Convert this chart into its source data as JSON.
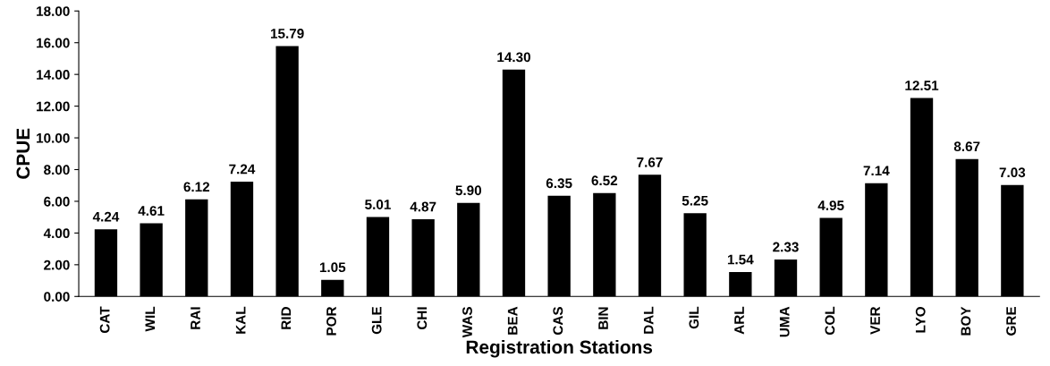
{
  "chart_data": {
    "type": "bar",
    "xlabel": "Registration Stations",
    "ylabel": "CPUE",
    "categories": [
      "CAT",
      "WIL",
      "RAI",
      "KAL",
      "RID",
      "POR",
      "GLE",
      "CHI",
      "WAS",
      "BEA",
      "CAS",
      "BIN",
      "DAL",
      "GIL",
      "ARL",
      "UMA",
      "COL",
      "VER",
      "LYO",
      "BOY",
      "GRE"
    ],
    "values": [
      4.24,
      4.61,
      6.12,
      7.24,
      15.79,
      1.05,
      5.01,
      4.87,
      5.9,
      14.3,
      6.35,
      6.52,
      7.67,
      5.25,
      1.54,
      2.33,
      4.95,
      7.14,
      12.51,
      8.67,
      7.03
    ],
    "value_labels": [
      "4.24",
      "4.61",
      "6.12",
      "7.24",
      "15.79",
      "1.05",
      "5.01",
      "4.87",
      "5.90",
      "14.30",
      "6.35",
      "6.52",
      "7.67",
      "5.25",
      "1.54",
      "2.33",
      "4.95",
      "7.14",
      "12.51",
      "8.67",
      "7.03"
    ],
    "color": "#000000",
    "ylim": [
      0,
      18
    ],
    "yticks": [
      {
        "value": 0,
        "label": "0.00"
      },
      {
        "value": 2,
        "label": "2.00"
      },
      {
        "value": 4,
        "label": "4.00"
      },
      {
        "value": 6,
        "label": "6.00"
      },
      {
        "value": 8,
        "label": "8.00"
      },
      {
        "value": 10,
        "label": "10.00"
      },
      {
        "value": 12,
        "label": "12.00"
      },
      {
        "value": 14,
        "label": "14.00"
      },
      {
        "value": 16,
        "label": "16.00"
      },
      {
        "value": 18,
        "label": "18.00"
      }
    ],
    "grid": false,
    "legend": false
  }
}
